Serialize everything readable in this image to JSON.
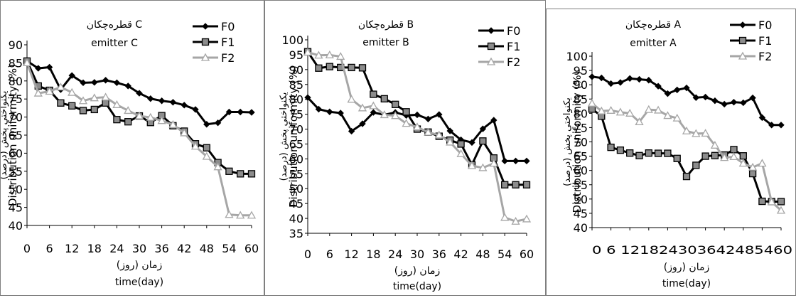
{
  "chart_data": [
    {
      "type": "line",
      "title": "قطره‌چکان C",
      "subtitle": "emitter C",
      "xlabel": "زمان (روز)",
      "xlabel2": "time(day)",
      "ylabel": "یکنواختی پخش (درصد)",
      "ylabel2": "Distribution uniformity (%)",
      "ylim": [
        40,
        90
      ],
      "yticks": [
        40,
        45,
        50,
        55,
        60,
        65,
        70,
        75,
        80,
        85,
        90
      ],
      "xlim": [
        0,
        60
      ],
      "xticks": [
        0,
        6,
        12,
        18,
        24,
        30,
        36,
        42,
        48,
        54,
        60
      ],
      "grid": false,
      "legend_position": "top-right",
      "series": [
        {
          "name": "F0",
          "color": "#000000",
          "marker": "diamond",
          "x": [
            0,
            3,
            6,
            9,
            12,
            15,
            18,
            21,
            24,
            27,
            30,
            33,
            36,
            39,
            42,
            45,
            48,
            51,
            54,
            57,
            60
          ],
          "values": [
            85.5,
            83.5,
            83.8,
            77.6,
            81.5,
            79.5,
            79.6,
            80.2,
            79.5,
            78.6,
            76.6,
            75.1,
            74.5,
            74.1,
            73.3,
            72.1,
            68.0,
            68.4,
            71.4,
            71.4,
            71.3
          ]
        },
        {
          "name": "F1",
          "color": "#000000",
          "fill": "#8c8c8c",
          "marker": "square",
          "x": [
            0,
            3,
            6,
            9,
            12,
            15,
            18,
            21,
            24,
            27,
            30,
            33,
            36,
            39,
            42,
            45,
            48,
            51,
            54,
            57,
            60
          ],
          "values": [
            85.5,
            78.6,
            77.4,
            73.9,
            73.1,
            71.8,
            72.1,
            73.9,
            69.3,
            68.7,
            70.3,
            68.5,
            70.4,
            67.6,
            66.1,
            62.6,
            61.5,
            57.4,
            55.0,
            54.3,
            54.3
          ]
        },
        {
          "name": "F2",
          "color": "#a6a6a6",
          "marker": "triangle",
          "x": [
            0,
            3,
            6,
            9,
            12,
            15,
            18,
            21,
            24,
            27,
            30,
            33,
            36,
            39,
            42,
            45,
            48,
            51,
            54,
            57,
            60
          ],
          "values": [
            85.0,
            76.6,
            77.1,
            78.3,
            76.8,
            74.5,
            75.3,
            75.5,
            73.4,
            71.8,
            70.3,
            69.9,
            69.0,
            67.9,
            65.6,
            61.9,
            59.1,
            56.2,
            43.0,
            42.8,
            42.8
          ]
        }
      ]
    },
    {
      "type": "line",
      "title": "قطره‌چکان B",
      "subtitle": "emitter B",
      "xlabel": "زمان (روز)",
      "xlabel2": "time(day)",
      "ylabel": "یکنواختی پخش (درصد)",
      "ylabel2": "Distribution uniformity (%)",
      "ylim": [
        35,
        100
      ],
      "yticks": [
        35,
        40,
        45,
        50,
        55,
        60,
        65,
        70,
        75,
        80,
        85,
        90,
        95,
        100
      ],
      "xlim": [
        0,
        60
      ],
      "xticks": [
        0,
        6,
        12,
        18,
        24,
        30,
        36,
        42,
        48,
        54,
        60
      ],
      "grid": false,
      "legend_position": "top-right",
      "series": [
        {
          "name": "F0",
          "color": "#000000",
          "marker": "diamond",
          "x": [
            0,
            3,
            6,
            9,
            12,
            15,
            18,
            21,
            24,
            27,
            30,
            33,
            36,
            39,
            42,
            45,
            48,
            51,
            54,
            57,
            60
          ],
          "values": [
            80.6,
            76.7,
            75.8,
            75.4,
            69.3,
            71.8,
            75.6,
            74.8,
            75.6,
            74.6,
            74.8,
            73.4,
            74.9,
            69.4,
            66.4,
            65.5,
            70.1,
            73.0,
            59.3,
            59.3,
            59.3
          ]
        },
        {
          "name": "F1",
          "color": "#000000",
          "fill": "#8c8c8c",
          "marker": "square",
          "x": [
            0,
            3,
            6,
            9,
            12,
            15,
            18,
            21,
            24,
            27,
            30,
            33,
            36,
            39,
            42,
            45,
            48,
            51,
            54,
            57,
            60
          ],
          "values": [
            96.0,
            90.5,
            91.0,
            90.7,
            90.7,
            90.6,
            81.7,
            80.2,
            78.3,
            75.8,
            70.0,
            69.0,
            67.6,
            66.3,
            65.0,
            58.0,
            66.0,
            60.3,
            51.3,
            51.3,
            51.3
          ]
        },
        {
          "name": "F2",
          "color": "#a6a6a6",
          "marker": "triangle",
          "x": [
            0,
            3,
            6,
            9,
            12,
            15,
            18,
            21,
            24,
            27,
            30,
            33,
            36,
            39,
            42,
            45,
            48,
            51,
            54,
            57,
            60
          ],
          "values": [
            95.8,
            94.8,
            94.9,
            94.4,
            80.0,
            77.1,
            77.8,
            74.8,
            74.5,
            71.9,
            70.7,
            68.9,
            68.0,
            65.6,
            61.7,
            57.7,
            57.0,
            58.5,
            40.3,
            39.0,
            39.8
          ]
        }
      ]
    },
    {
      "type": "line",
      "title": "قطره‌چکان A",
      "subtitle": "emitter A",
      "xlabel": "زمان (روز)",
      "xlabel2": "time(day)",
      "ylabel": "یکنواختی پخش (درصد)",
      "ylabel2": "Distribution uniformity (%)",
      "ylim": [
        40,
        100
      ],
      "yticks": [
        40,
        45,
        50,
        55,
        60,
        65,
        70,
        75,
        80,
        85,
        90,
        95,
        100
      ],
      "xlim": [
        0,
        60
      ],
      "xticks": [
        0,
        6,
        12,
        18,
        24,
        30,
        36,
        42,
        48,
        54,
        60
      ],
      "xtick_label_text": "0  6 121824303642485460",
      "grid": false,
      "legend_position": "top-right",
      "series": [
        {
          "name": "F0",
          "color": "#000000",
          "marker": "diamond",
          "x": [
            0,
            3,
            6,
            9,
            12,
            15,
            18,
            21,
            24,
            27,
            30,
            33,
            36,
            39,
            42,
            45,
            48,
            51,
            54,
            57,
            60
          ],
          "values": [
            92.8,
            92.4,
            90.4,
            90.8,
            92.2,
            91.9,
            91.6,
            89.5,
            86.9,
            88.2,
            88.9,
            85.5,
            85.7,
            84.4,
            83.2,
            83.9,
            83.7,
            85.4,
            78.5,
            75.9,
            75.9
          ]
        },
        {
          "name": "F1",
          "color": "#000000",
          "fill": "#8c8c8c",
          "marker": "square",
          "x": [
            0,
            3,
            6,
            9,
            12,
            15,
            18,
            21,
            24,
            27,
            30,
            33,
            36,
            39,
            42,
            45,
            48,
            51,
            54,
            57,
            60
          ],
          "values": [
            81.5,
            79.0,
            68.1,
            67.1,
            66.1,
            65.2,
            66.1,
            66.0,
            66.0,
            64.2,
            57.9,
            61.8,
            65.0,
            65.2,
            65.4,
            67.3,
            65.1,
            58.9,
            49.2,
            49.1,
            49.1
          ]
        },
        {
          "name": "F2",
          "color": "#a6a6a6",
          "marker": "triangle",
          "x": [
            0,
            3,
            6,
            9,
            12,
            15,
            18,
            21,
            24,
            27,
            30,
            33,
            36,
            39,
            42,
            45,
            48,
            51,
            54,
            57,
            60
          ],
          "values": [
            83.5,
            80.8,
            81.0,
            80.4,
            80.0,
            77.0,
            81.3,
            81.1,
            79.2,
            78.3,
            73.8,
            72.9,
            73.0,
            68.8,
            64.5,
            64.8,
            62.5,
            61.1,
            62.5,
            49.0,
            46.0
          ]
        }
      ]
    }
  ]
}
